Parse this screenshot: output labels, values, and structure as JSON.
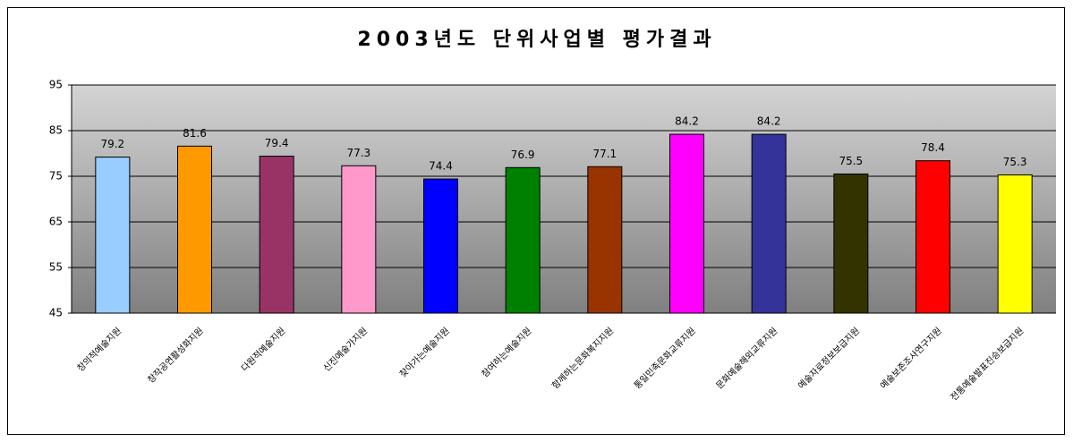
{
  "chart_data": {
    "type": "bar",
    "title": "2003년도 단위사업별 평가결과",
    "categories": [
      "창의적예술지원",
      "창작공연활성화지원",
      "다원적예술지원",
      "신진예술가지원",
      "찾아가는예술지원",
      "참여하는예술지원",
      "함께하는문화복지지원",
      "통일민족문화교류지원",
      "문화예술해외교류지원",
      "예술자료정보보급지원",
      "예술보존조사연구지원",
      "전통예술발표진승보급지원"
    ],
    "values": [
      79.2,
      81.6,
      79.4,
      77.3,
      74.4,
      76.9,
      77.1,
      84.2,
      84.2,
      75.5,
      78.4,
      75.3
    ],
    "colors": [
      "#99ccff",
      "#ff9900",
      "#993366",
      "#ff99cc",
      "#0000ff",
      "#008000",
      "#993300",
      "#ff00ff",
      "#333399",
      "#333300",
      "#ff0000",
      "#ffff00"
    ],
    "ylim": [
      45,
      95
    ],
    "yticks": [
      45,
      55,
      65,
      75,
      85,
      95
    ],
    "grid": true
  }
}
